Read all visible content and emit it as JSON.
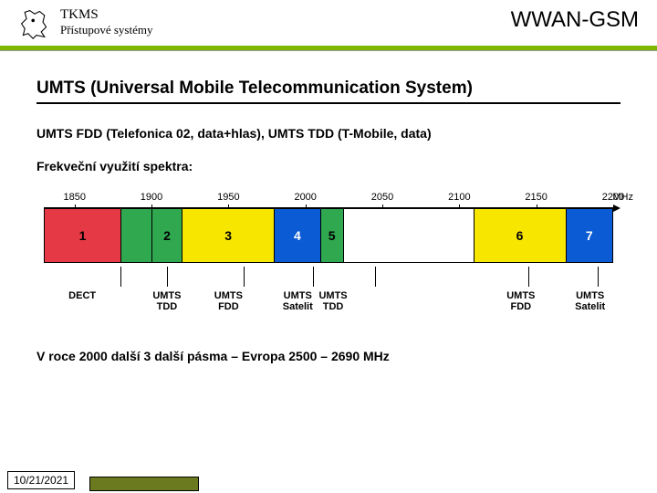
{
  "header": {
    "org": "TKMS",
    "subtitle": "Přístupové systémy",
    "right": "WWAN-GSM",
    "bar_color": "#7fb800"
  },
  "title": "UMTS (Universal Mobile Telecommunication System)",
  "line1": "UMTS FDD (Telefonica 02, data+hlas), UMTS TDD (T-Mobile, data)",
  "line2": "Frekveční využití spektra:",
  "spectrum": {
    "range": [
      1830,
      2200
    ],
    "ticks": [
      1850,
      1900,
      1950,
      2000,
      2050,
      2100,
      2150
    ],
    "unit": "MHz",
    "bands": [
      {
        "num": "1",
        "start": 1830,
        "end": 1880,
        "color": "#e63946"
      },
      {
        "num": "",
        "start": 1880,
        "end": 1900,
        "color": "#2fa84f"
      },
      {
        "num": "2",
        "start": 1900,
        "end": 1920,
        "color": "#2fa84f"
      },
      {
        "num": "3",
        "start": 1920,
        "end": 1980,
        "color": "#f7e600"
      },
      {
        "num": "4",
        "start": 1980,
        "end": 2010,
        "color": "#0a5bd4"
      },
      {
        "num": "5",
        "start": 2010,
        "end": 2025,
        "color": "#2fa84f"
      },
      {
        "num": "",
        "start": 2025,
        "end": 2110,
        "color": "#ffffff"
      },
      {
        "num": "6",
        "start": 2110,
        "end": 2170,
        "color": "#f7e600"
      },
      {
        "num": "7",
        "start": 2170,
        "end": 2200,
        "color": "#0a5bd4"
      }
    ],
    "labels": [
      {
        "text": "DECT",
        "at": 1880,
        "mid": 1855
      },
      {
        "text": "UMTS\nTDD",
        "at": 1910,
        "mid": 1910,
        "two": true
      },
      {
        "text": "UMTS\nFDD",
        "at": 1960,
        "mid": 1950,
        "two": true
      },
      {
        "text": "UMTS\nSatelit",
        "at": 2005,
        "mid": 1995,
        "two": true
      },
      {
        "text": "UMTS\nTDD",
        "at": 2045,
        "mid": 2018,
        "two": true
      },
      {
        "text": "UMTS\nFDD",
        "at": 2145,
        "mid": 2140,
        "two": true
      },
      {
        "text": "UMTS\nSatelit",
        "at": 2190,
        "mid": 2185,
        "two": true
      }
    ]
  },
  "line3": "V roce 2000 další 3 další pásma – Evropa 2500 – 2690 MHz",
  "date": "10/21/2021",
  "olive_color": "#6b7a1f"
}
